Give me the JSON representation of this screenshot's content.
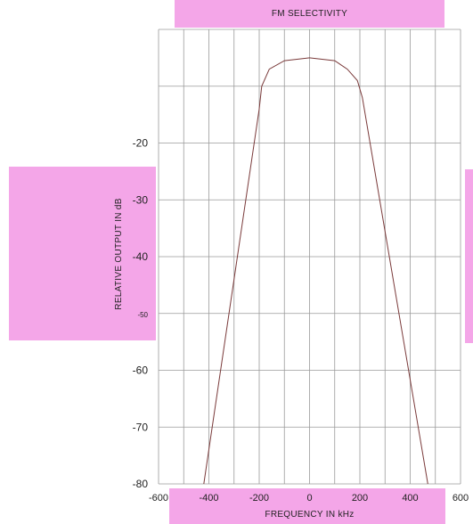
{
  "chart_data": {
    "type": "line",
    "title": "FM SELECTIVITY",
    "xlabel": "FREQUENCY IN kHz",
    "ylabel": "RELATIVE OUTPUT IN dB",
    "xlim": [
      -600,
      600
    ],
    "ylim": [
      -80,
      0
    ],
    "x_ticks": [
      "-600",
      "-400",
      "-200",
      "0",
      "200",
      "400",
      "600"
    ],
    "y_ticks": [
      {
        "value": -20,
        "label": "-20"
      },
      {
        "value": -30,
        "label": "-30"
      },
      {
        "value": -40,
        "label": "-40"
      },
      {
        "value": -50,
        "label": "-50"
      },
      {
        "value": -60,
        "label": "-60"
      },
      {
        "value": -70,
        "label": "-70"
      },
      {
        "value": -80,
        "label": "-80"
      }
    ],
    "grid": true,
    "series": [
      {
        "x": [
          -420,
          -200,
          -190,
          -160,
          -100,
          0,
          100,
          150,
          190,
          210,
          470
        ],
        "y": [
          -80,
          -14,
          -10,
          -7,
          -5.5,
          -5,
          -5.5,
          -7,
          -9,
          -12,
          -80
        ]
      }
    ],
    "colors": {
      "line": "#7a3a3a",
      "grid": "#9a9a9a",
      "band": "#f4a6e8"
    }
  }
}
